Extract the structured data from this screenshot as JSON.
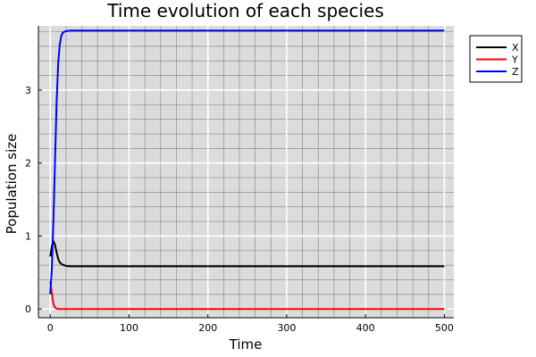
{
  "chart_data": {
    "type": "line",
    "title": "Time evolution of each species",
    "xlabel": "Time",
    "ylabel": "Population size",
    "xlim": [
      -15,
      512
    ],
    "ylim": [
      -0.12,
      3.88
    ],
    "xticks": [
      0,
      100,
      200,
      300,
      400,
      500
    ],
    "yticks": [
      0,
      1,
      2,
      3
    ],
    "grid": true,
    "minor_grid": true,
    "legend_position": "outer-top-right",
    "background": "#dcdcdc",
    "series": [
      {
        "name": "X",
        "color": "#000000",
        "points": [
          [
            0,
            0.72
          ],
          [
            2,
            0.86
          ],
          [
            4,
            0.93
          ],
          [
            6,
            0.88
          ],
          [
            8,
            0.78
          ],
          [
            10,
            0.69
          ],
          [
            12,
            0.64
          ],
          [
            15,
            0.61
          ],
          [
            20,
            0.59
          ],
          [
            25,
            0.585
          ],
          [
            30,
            0.585
          ],
          [
            500,
            0.585
          ]
        ]
      },
      {
        "name": "Y",
        "color": "#ff0000",
        "points": [
          [
            0,
            0.38
          ],
          [
            1,
            0.3
          ],
          [
            2,
            0.22
          ],
          [
            3,
            0.14
          ],
          [
            4,
            0.08
          ],
          [
            5,
            0.04
          ],
          [
            6,
            0.02
          ],
          [
            8,
            0.005
          ],
          [
            10,
            0.0
          ],
          [
            500,
            0.0
          ]
        ]
      },
      {
        "name": "Z",
        "color": "#0000ff",
        "points": [
          [
            0,
            0.2
          ],
          [
            2,
            0.55
          ],
          [
            4,
            1.2
          ],
          [
            6,
            2.0
          ],
          [
            8,
            2.8
          ],
          [
            10,
            3.35
          ],
          [
            12,
            3.62
          ],
          [
            14,
            3.74
          ],
          [
            16,
            3.79
          ],
          [
            20,
            3.81
          ],
          [
            25,
            3.815
          ],
          [
            500,
            3.815
          ]
        ]
      }
    ]
  }
}
